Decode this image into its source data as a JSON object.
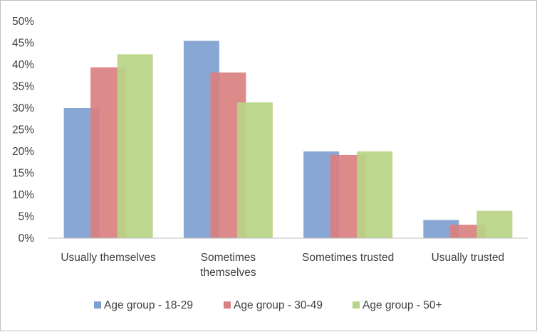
{
  "chart_data": {
    "type": "bar",
    "title": "",
    "xlabel": "",
    "ylabel": "",
    "categories": [
      [
        "Usually themselves"
      ],
      [
        "Sometimes",
        "themselves"
      ],
      [
        "Sometimes trusted"
      ],
      [
        "Usually trusted"
      ]
    ],
    "series": [
      {
        "name": "Age group - 18-29",
        "color": "#7f9fd0",
        "values": [
          30,
          45.5,
          20,
          4.2
        ]
      },
      {
        "name": "Age group - 30-49",
        "color": "#d98080",
        "values": [
          39.4,
          38.2,
          19.2,
          3.1
        ]
      },
      {
        "name": "Age group - 50+",
        "color": "#b8d486",
        "values": [
          42.4,
          31.3,
          20,
          6.3
        ]
      }
    ],
    "ylim": [
      0,
      50
    ],
    "yticks": [
      "0%",
      "5%",
      "10%",
      "15%",
      "20%",
      "25%",
      "30%",
      "35%",
      "40%",
      "45%",
      "50%"
    ],
    "grid": false,
    "legend_position": "bottom"
  }
}
